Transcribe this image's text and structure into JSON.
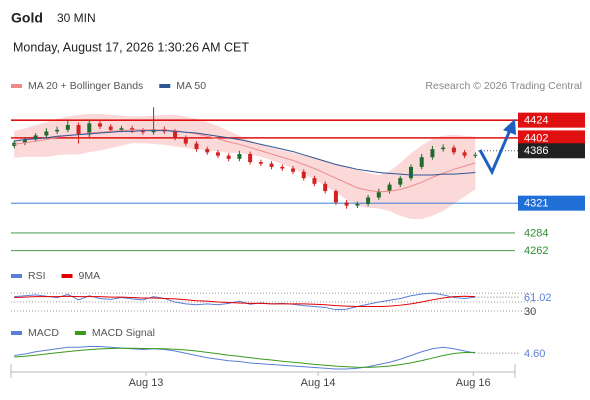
{
  "header": {
    "title": "Gold",
    "timeframe": "30 MIN",
    "timestamp": "Monday, August 17, 2026 1:30:26 AM CET"
  },
  "chart_data": [
    {
      "type": "candlestick",
      "source": "Research © 2026 Trading Central",
      "xlim": [
        -0.3,
        46.7
      ],
      "ylim": [
        4248,
        4449
      ],
      "up_color": "#1e6b2e",
      "down_color": "#d42020",
      "open": [
        4392,
        4396,
        4400,
        4405,
        4410,
        4412,
        4418,
        4406,
        4420,
        4416,
        4412,
        4414,
        4411,
        4409,
        4413,
        4410,
        4402,
        4395,
        4388,
        4384,
        4380,
        4376,
        4382,
        4372,
        4370,
        4366,
        4364,
        4360,
        4352,
        4345,
        4336,
        4322,
        4318,
        4320,
        4328,
        4336,
        4344,
        4352,
        4366,
        4378,
        4388,
        4390,
        4384,
        4380
      ],
      "high": [
        4399,
        4403,
        4408,
        4414,
        4416,
        4424,
        4421,
        4425,
        4423,
        4419,
        4417,
        4417,
        4414,
        4440,
        4416,
        4413,
        4405,
        4398,
        4391,
        4387,
        4383,
        4386,
        4385,
        4375,
        4373,
        4369,
        4367,
        4363,
        4355,
        4348,
        4338,
        4325,
        4323,
        4331,
        4339,
        4347,
        4355,
        4369,
        4382,
        4392,
        4394,
        4393,
        4387,
        4384
      ],
      "low": [
        4389,
        4393,
        4397,
        4402,
        4407,
        4409,
        4395,
        4403,
        4413,
        4409,
        4409,
        4408,
        4406,
        4406,
        4407,
        4399,
        4392,
        4385,
        4381,
        4377,
        4373,
        4373,
        4369,
        4367,
        4363,
        4361,
        4357,
        4349,
        4342,
        4333,
        4319,
        4314,
        4315,
        4317,
        4325,
        4333,
        4341,
        4349,
        4363,
        4375,
        4385,
        4381,
        4377,
        4377
      ],
      "close": [
        4396,
        4400,
        4405,
        4410,
        4412,
        4418,
        4406,
        4420,
        4416,
        4412,
        4414,
        4411,
        4409,
        4413,
        4410,
        4402,
        4395,
        4388,
        4384,
        4380,
        4376,
        4382,
        4372,
        4370,
        4366,
        4364,
        4360,
        4352,
        4345,
        4336,
        4322,
        4318,
        4320,
        4328,
        4336,
        4344,
        4352,
        4366,
        4378,
        4388,
        4390,
        4384,
        4380,
        4381
      ],
      "series": [
        {
          "name": "MA 20 + Bollinger Bands",
          "color": "#f08a8a",
          "band_color": "#fbd9d9",
          "values": [
            4394,
            4396,
            4398,
            4400,
            4403,
            4405,
            4406,
            4408,
            4409,
            4410,
            4411,
            4412,
            4412,
            4412,
            4412,
            4411,
            4409,
            4407,
            4404,
            4401,
            4397,
            4394,
            4390,
            4386,
            4382,
            4378,
            4374,
            4369,
            4364,
            4358,
            4352,
            4346,
            4340,
            4337,
            4335,
            4336,
            4338,
            4342,
            4347,
            4353,
            4358,
            4363,
            4367,
            4371
          ],
          "upper": [
            4410,
            4413,
            4417,
            4421,
            4425,
            4428,
            4430,
            4431,
            4431,
            4430,
            4429,
            4428,
            4428,
            4429,
            4430,
            4430,
            4428,
            4425,
            4421,
            4416,
            4410,
            4404,
            4398,
            4393,
            4389,
            4386,
            4383,
            4380,
            4377,
            4373,
            4369,
            4366,
            4362,
            4358,
            4355,
            4360,
            4370,
            4382,
            4392,
            4400,
            4404,
            4405,
            4404,
            4403
          ],
          "lower": [
            4378,
            4379,
            4379,
            4379,
            4381,
            4382,
            4382,
            4385,
            4387,
            4390,
            4393,
            4396,
            4396,
            4395,
            4394,
            4392,
            4390,
            4389,
            4387,
            4386,
            4384,
            4384,
            4382,
            4379,
            4375,
            4370,
            4365,
            4358,
            4351,
            4343,
            4335,
            4326,
            4318,
            4316,
            4315,
            4312,
            4306,
            4302,
            4302,
            4306,
            4312,
            4321,
            4330,
            4339
          ]
        },
        {
          "name": "MA 50",
          "color": "#2f5597",
          "values": [
            4398,
            4400,
            4401,
            4402,
            4404,
            4405,
            4406,
            4407,
            4408,
            4409,
            4410,
            4410,
            4411,
            4411,
            4411,
            4410,
            4409,
            4408,
            4406,
            4404,
            4402,
            4400,
            4397,
            4394,
            4391,
            4388,
            4385,
            4381,
            4377,
            4373,
            4369,
            4366,
            4363,
            4361,
            4359,
            4358,
            4357,
            4356,
            4356,
            4356,
            4357,
            4357,
            4358,
            4359
          ]
        }
      ],
      "levels": [
        {
          "value": 4424,
          "color": "#e01010",
          "boxed": true,
          "style": "solid"
        },
        {
          "value": 4402,
          "color": "#e01010",
          "boxed": true,
          "style": "solid"
        },
        {
          "value": 4386,
          "color": "#222222",
          "boxed": true,
          "style": "dotted"
        },
        {
          "value": 4321,
          "color": "#1f6fd6",
          "boxed": true,
          "style": "solid"
        },
        {
          "value": 4284,
          "color": "#2e8b2e",
          "boxed": false,
          "style": "solid"
        },
        {
          "value": 4262,
          "color": "#2e8b2e",
          "boxed": false,
          "style": "solid"
        }
      ]
    },
    {
      "type": "line",
      "xlim": [
        -0.3,
        46.7
      ],
      "ylim": [
        10,
        88
      ],
      "yticks": [
        30
      ],
      "levels": [
        50,
        70
      ],
      "series": [
        {
          "name": "RSI",
          "color": "#5b7fd6",
          "values": [
            62,
            64,
            66,
            63,
            60,
            67,
            55,
            64,
            58,
            56,
            60,
            57,
            55,
            62,
            58,
            50,
            46,
            44,
            46,
            44,
            47,
            52,
            45,
            48,
            46,
            47,
            45,
            42,
            40,
            38,
            33,
            34,
            40,
            45,
            50,
            54,
            58,
            64,
            68,
            70,
            66,
            60,
            58,
            61.02
          ]
        },
        {
          "name": "9MA",
          "color": "#e00000",
          "values": [
            60,
            61,
            62,
            62,
            62,
            63,
            62,
            62,
            62,
            61,
            61,
            60,
            59,
            59,
            58,
            57,
            55,
            53,
            52,
            50,
            49,
            48,
            47,
            47,
            46,
            46,
            46,
            46,
            45,
            44,
            42,
            41,
            40,
            40,
            40,
            41,
            43,
            46,
            50,
            55,
            59,
            62,
            63,
            62
          ]
        }
      ]
    },
    {
      "type": "line",
      "xlim": [
        -0.3,
        46.7
      ],
      "ylim": [
        -8,
        20
      ],
      "xticks": [
        {
          "value": 12.29,
          "label": "Aug 13"
        },
        {
          "value": 28.34,
          "label": "Aug 14"
        },
        {
          "value": 42.8,
          "label": "Aug 16"
        }
      ],
      "series": [
        {
          "name": "MACD",
          "color": "#5b7fd6",
          "values": [
            3,
            4,
            5.5,
            6.5,
            7.5,
            8.5,
            8.5,
            9,
            9,
            8.5,
            8,
            7.5,
            7,
            7.5,
            7,
            6,
            4.5,
            3,
            1.5,
            0.5,
            -0.5,
            -1,
            -2,
            -2.5,
            -3,
            -3.5,
            -4,
            -4.5,
            -5,
            -5.5,
            -6,
            -6,
            -5.5,
            -4.5,
            -3,
            -1.5,
            0.5,
            3,
            5.5,
            7.5,
            8.5,
            7.5,
            6,
            4.6
          ],
          "value_labels": [
            null,
            null,
            null,
            null,
            null,
            null,
            null,
            null,
            null,
            null,
            null,
            null,
            null,
            null,
            null,
            null,
            null,
            null,
            null,
            null,
            null,
            null,
            null,
            null,
            null,
            null,
            null,
            null,
            null,
            null,
            null,
            null,
            null,
            null,
            null,
            null,
            null,
            null,
            null,
            null,
            null,
            null,
            null,
            "4.60"
          ]
        },
        {
          "name": "MACD Signal",
          "color": "#3a9a1a",
          "values": [
            2,
            2.5,
            3.2,
            4,
            4.8,
            5.6,
            6.3,
            6.9,
            7.4,
            7.7,
            7.8,
            7.8,
            7.7,
            7.6,
            7.5,
            7.2,
            6.7,
            6,
            5.1,
            4.2,
            3.2,
            2.4,
            1.5,
            0.7,
            0,
            -0.8,
            -1.5,
            -2.2,
            -2.9,
            -3.5,
            -4.1,
            -4.5,
            -4.8,
            -4.9,
            -4.6,
            -4,
            -3.1,
            -1.9,
            -0.4,
            1.3,
            3,
            4.3,
            5,
            5.1
          ]
        }
      ]
    }
  ]
}
